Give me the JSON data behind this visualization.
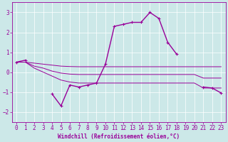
{
  "xlabel": "Windchill (Refroidissement éolien,°C)",
  "x": [
    0,
    1,
    2,
    3,
    4,
    5,
    6,
    7,
    8,
    9,
    10,
    11,
    12,
    13,
    14,
    15,
    16,
    17,
    18,
    19,
    20,
    21,
    22,
    23
  ],
  "line_main": [
    0.5,
    0.6,
    null,
    null,
    -1.1,
    -1.7,
    -0.65,
    -0.75,
    -0.65,
    -0.55,
    0.4,
    2.3,
    2.4,
    2.5,
    2.5,
    3.0,
    2.7,
    1.5,
    0.9,
    null,
    null,
    -0.75,
    -0.8,
    -1.05
  ],
  "line_upper": [
    0.5,
    0.5,
    0.45,
    0.4,
    0.35,
    0.3,
    0.28,
    0.27,
    0.27,
    0.27,
    0.27,
    0.27,
    0.27,
    0.27,
    0.27,
    0.27,
    0.27,
    0.27,
    0.27,
    0.27,
    0.27,
    0.27,
    0.27,
    0.27
  ],
  "line_lower": [
    0.5,
    0.5,
    0.2,
    0.0,
    -0.2,
    -0.4,
    -0.5,
    -0.55,
    -0.55,
    -0.55,
    -0.55,
    -0.55,
    -0.55,
    -0.55,
    -0.55,
    -0.55,
    -0.55,
    -0.55,
    -0.55,
    -0.55,
    -0.55,
    -0.8,
    -0.8,
    -0.8
  ],
  "line_mid": [
    0.5,
    0.5,
    0.3,
    0.2,
    0.05,
    -0.05,
    -0.1,
    -0.12,
    -0.12,
    -0.12,
    -0.12,
    -0.12,
    -0.12,
    -0.12,
    -0.12,
    -0.12,
    -0.12,
    -0.12,
    -0.12,
    -0.12,
    -0.12,
    -0.3,
    -0.3,
    -0.3
  ],
  "color": "#990099",
  "bg_color": "#cce8e8",
  "grid_color": "#ffffff",
  "ylim": [
    -2.5,
    3.5
  ],
  "xlim": [
    -0.5,
    23.5
  ],
  "yticks": [
    -2,
    -1,
    0,
    1,
    2,
    3
  ],
  "xticks": [
    0,
    1,
    2,
    3,
    4,
    5,
    6,
    7,
    8,
    9,
    10,
    11,
    12,
    13,
    14,
    15,
    16,
    17,
    18,
    19,
    20,
    21,
    22,
    23
  ]
}
